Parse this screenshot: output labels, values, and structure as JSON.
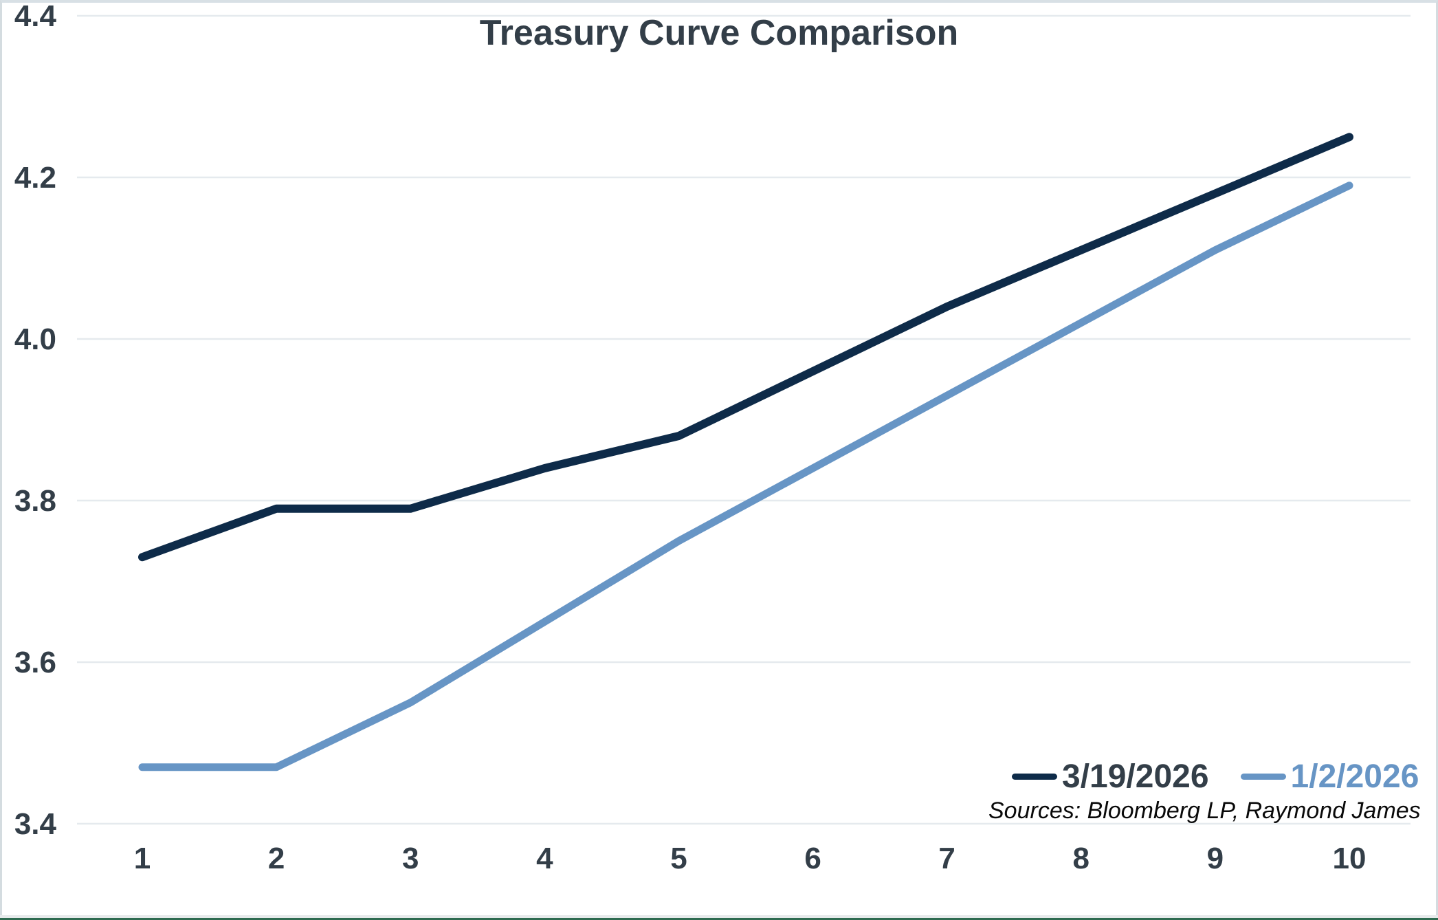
{
  "title": "Treasury Curve Comparison",
  "source_note": "Sources: Bloomberg LP, Raymond James",
  "colors": {
    "navy": "#0E2B49",
    "steel_blue": "#6795C5",
    "text": "#333E48",
    "gridline": "#E5EAEE",
    "frame_border": "#D6DEE3",
    "bottom_gray": "#E7EAEB",
    "bottom_green": "#2E6B50"
  },
  "chart_data": {
    "type": "line",
    "title": "Treasury Curve Comparison",
    "x": [
      1,
      2,
      3,
      4,
      5,
      6,
      7,
      8,
      9,
      10
    ],
    "xlabel": "",
    "ylabel": "",
    "ylim": [
      3.4,
      4.4
    ],
    "y_ticks": [
      "4.4",
      "4.2",
      "4.0",
      "3.8",
      "3.6",
      "3.4"
    ],
    "grid": "horizontal",
    "legend_position": "bottom-right",
    "series": [
      {
        "name": "3/19/2026",
        "color": "#0E2B49",
        "values": [
          3.73,
          3.79,
          3.79,
          3.84,
          3.88,
          3.96,
          4.04,
          4.11,
          4.18,
          4.25
        ]
      },
      {
        "name": "1/2/2026",
        "color": "#6795C5",
        "values": [
          3.47,
          3.47,
          3.55,
          3.65,
          3.75,
          3.84,
          3.93,
          4.02,
          4.11,
          4.19
        ]
      }
    ],
    "source": "Sources: Bloomberg LP, Raymond James"
  }
}
